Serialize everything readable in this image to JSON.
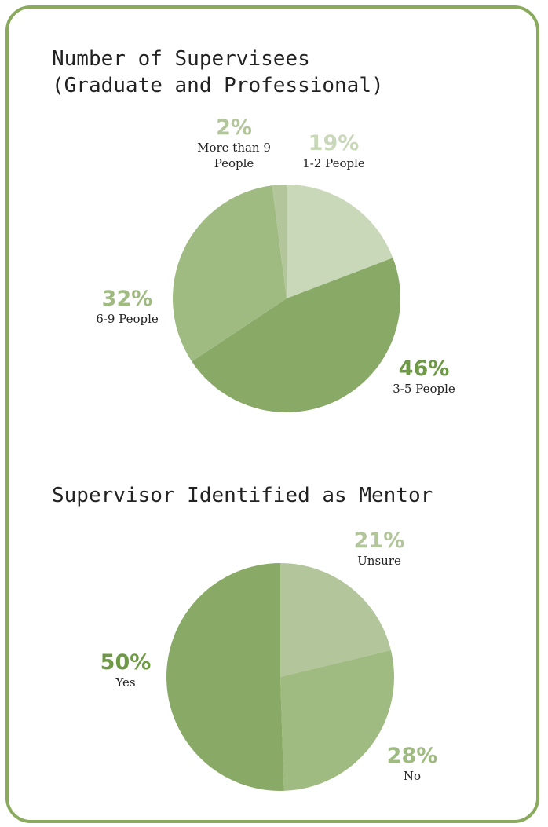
{
  "chart_data": [
    {
      "type": "pie",
      "title": "Number of Supervisees (Graduate and Professional)",
      "categories": [
        "1-2 People",
        "3-5 People",
        "6-9 People",
        "More than 9 People"
      ],
      "values": [
        19,
        46,
        32,
        2
      ],
      "value_labels": [
        "19%",
        "46%",
        "32%",
        "2%"
      ],
      "colors": [
        "#c9d8b9",
        "#89aa66",
        "#a0bb82",
        "#b3c69b"
      ]
    },
    {
      "type": "pie",
      "title": "Supervisor Identified as Mentor",
      "categories": [
        "Unsure",
        "No",
        "Yes"
      ],
      "values": [
        21,
        28,
        50
      ],
      "value_labels": [
        "21%",
        "28%",
        "50%"
      ],
      "colors": [
        "#b3c69b",
        "#a0bb82",
        "#89aa66"
      ]
    }
  ]
}
